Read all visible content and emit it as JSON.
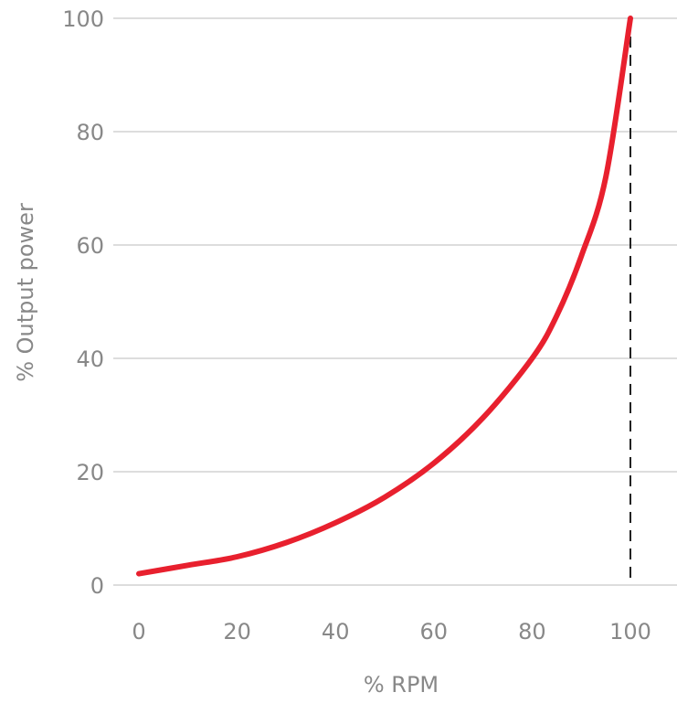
{
  "chart_data": {
    "type": "line",
    "title": "",
    "xlabel": "% RPM",
    "ylabel": "% Output power",
    "x_ticks": [
      "0",
      "20",
      "40",
      "60",
      "80",
      "100"
    ],
    "y_ticks": [
      "0",
      "20",
      "40",
      "60",
      "80",
      "100"
    ],
    "xlim": [
      0,
      100
    ],
    "ylim": [
      0,
      100
    ],
    "grid": "horizontal",
    "series": [
      {
        "color": "#e8202e",
        "x": [
          0,
          10,
          20,
          30,
          40,
          50,
          60,
          70,
          80,
          85,
          90,
          95,
          100
        ],
        "y": [
          2,
          3.5,
          5,
          7.5,
          11,
          15.5,
          21.5,
          29.5,
          40,
          47.5,
          58,
          72,
          100
        ]
      }
    ],
    "reference_line": {
      "x": 100,
      "y_from": 0,
      "y_to": 100,
      "style": "dashed",
      "color": "#222222"
    },
    "colors": {
      "grid": "#dddddd",
      "tick_text": "#888888",
      "axis_title": "#888888"
    }
  }
}
